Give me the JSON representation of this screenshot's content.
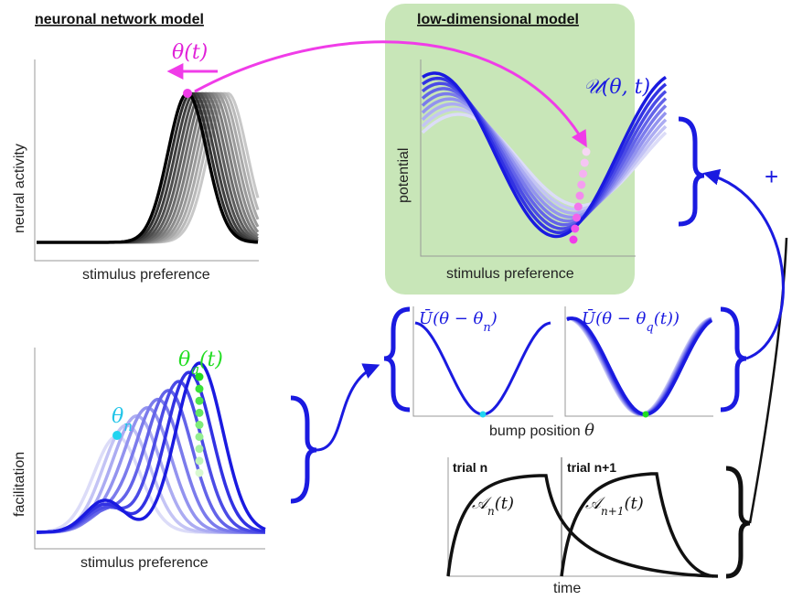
{
  "headers": {
    "network": "neuronal network model",
    "lowdim": "low-dimensional model"
  },
  "panel_activity": {
    "ylabel": "neural activity",
    "xlabel": "stimulus preference",
    "annotation": "θ(t)"
  },
  "panel_potential": {
    "ylabel": "potential",
    "xlabel": "stimulus preference",
    "annotation": "𝒰(θ, t)"
  },
  "panel_facilitation": {
    "ylabel": "facilitation",
    "xlabel": "stimulus preference",
    "annotation_q": "θq(t)",
    "annotation_n": "θn"
  },
  "panel_ubar": {
    "left_label": "Ū(θ − θn)",
    "right_label": "Ū(θ − θq(t))",
    "xlabel": "bump position  θ"
  },
  "panel_trials": {
    "trial_n": "trial n",
    "trial_n1": "trial n+1",
    "a_n": "𝒜n(t)",
    "a_n1": "𝒜n+1(t)",
    "xlabel": "time"
  },
  "plus": "+",
  "colors": {
    "green_bg": "#c8e6b8",
    "blue": "#1a1ae0",
    "magenta": "#f03ce8",
    "green_dot": "#22dd22",
    "cyan_dot": "#22d4f0"
  }
}
